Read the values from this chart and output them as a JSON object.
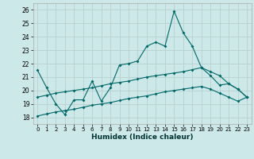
{
  "bg_color": "#cde8e8",
  "grid_color": "#b8d0d0",
  "line_color": "#006868",
  "xlim": [
    -0.5,
    23.5
  ],
  "ylim": [
    17.5,
    26.5
  ],
  "yticks": [
    18,
    19,
    20,
    21,
    22,
    23,
    24,
    25,
    26
  ],
  "xticks": [
    0,
    1,
    2,
    3,
    4,
    5,
    6,
    7,
    8,
    9,
    10,
    11,
    12,
    13,
    14,
    15,
    16,
    17,
    18,
    19,
    20,
    21,
    22,
    23
  ],
  "xlabel": "Humidex (Indice chaleur)",
  "line1": [
    21.5,
    20.2,
    19.0,
    18.2,
    19.3,
    19.3,
    20.7,
    19.2,
    20.2,
    21.9,
    22.0,
    22.2,
    23.3,
    23.6,
    23.3,
    25.9,
    24.3,
    23.3,
    21.7,
    21.1,
    20.4,
    20.5,
    20.1,
    19.5
  ],
  "line2": [
    19.5,
    19.65,
    19.8,
    19.9,
    20.0,
    20.1,
    20.2,
    20.35,
    20.5,
    20.6,
    20.7,
    20.85,
    21.0,
    21.1,
    21.2,
    21.3,
    21.4,
    21.55,
    21.7,
    21.4,
    21.1,
    20.5,
    20.1,
    19.5
  ],
  "line3": [
    18.1,
    18.25,
    18.4,
    18.5,
    18.6,
    18.75,
    18.9,
    19.0,
    19.1,
    19.25,
    19.4,
    19.5,
    19.6,
    19.75,
    19.9,
    20.0,
    20.1,
    20.2,
    20.3,
    20.1,
    19.8,
    19.5,
    19.2,
    19.5
  ]
}
